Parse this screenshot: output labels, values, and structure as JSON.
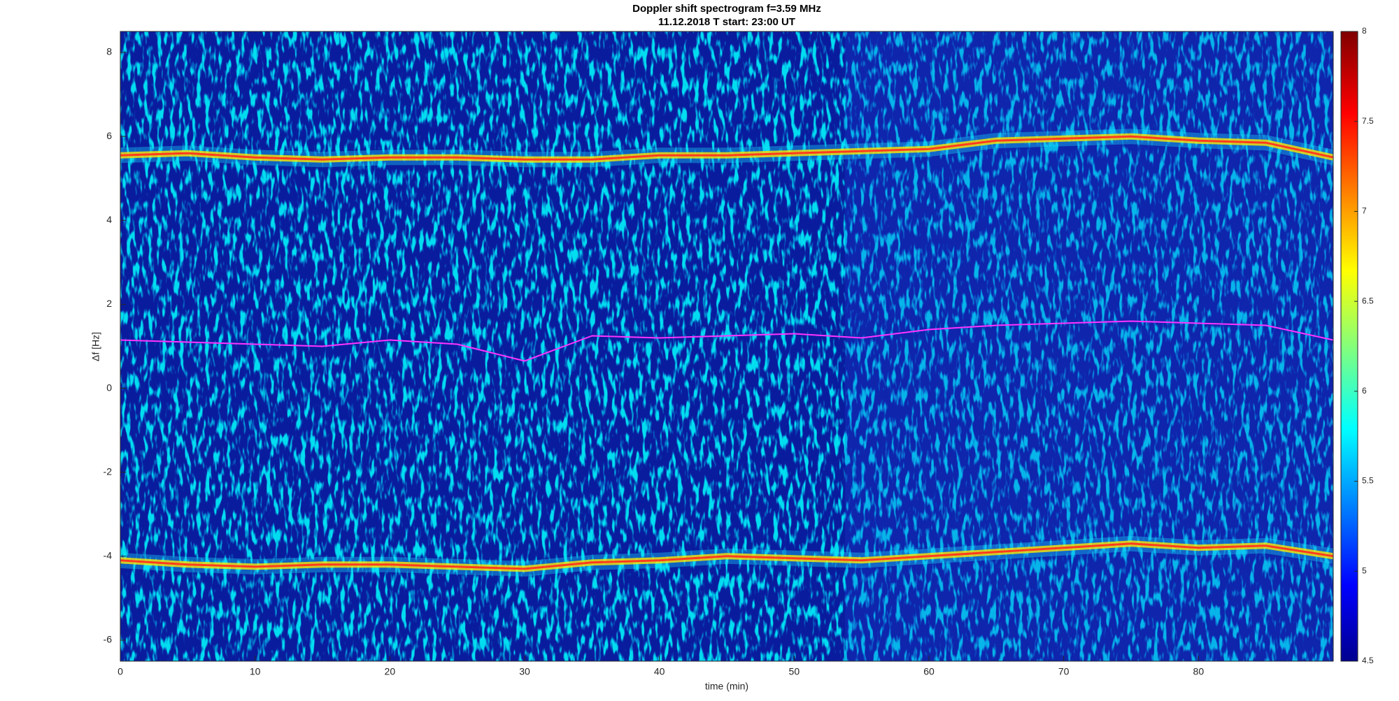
{
  "chart_data": {
    "type": "spectrogram",
    "title": "Doppler shift spectrogram f=3.59 MHz",
    "subtitle": "11.12.2018    T start: 23:00 UT",
    "xlabel": "time (min)",
    "ylabel": "Δf [Hz]",
    "xlim": [
      0,
      90
    ],
    "xticks": [
      0,
      10,
      20,
      30,
      40,
      50,
      60,
      70,
      80
    ],
    "ylim": [
      -6.5,
      8.5
    ],
    "yticks": [
      -6,
      -4,
      -2,
      0,
      2,
      4,
      6,
      8
    ],
    "clim": [
      4.5,
      8
    ],
    "cticks": [
      4.5,
      5,
      5.5,
      6,
      6.5,
      7,
      7.5,
      8
    ],
    "x": [
      0,
      5,
      10,
      15,
      20,
      25,
      30,
      35,
      40,
      45,
      50,
      55,
      60,
      65,
      70,
      75,
      80,
      85,
      90
    ],
    "series": [
      {
        "color": "#ff3b1f",
        "values": [
          5.55,
          5.6,
          5.5,
          5.45,
          5.5,
          5.5,
          5.45,
          5.45,
          5.55,
          5.55,
          5.6,
          5.65,
          5.7,
          5.9,
          5.95,
          6.0,
          5.9,
          5.85,
          5.5
        ]
      },
      {
        "color": "#ff33ff",
        "values": [
          1.15,
          1.1,
          1.05,
          1.0,
          1.15,
          1.05,
          0.65,
          1.25,
          1.2,
          1.25,
          1.3,
          1.2,
          1.4,
          1.5,
          1.55,
          1.6,
          1.55,
          1.5,
          1.15
        ]
      },
      {
        "color": "#ff3b1f",
        "values": [
          -4.1,
          -4.2,
          -4.25,
          -4.2,
          -4.2,
          -4.25,
          -4.3,
          -4.15,
          -4.1,
          -4.0,
          -4.05,
          -4.1,
          -4.0,
          -3.9,
          -3.8,
          -3.7,
          -3.8,
          -3.75,
          -4.0
        ]
      }
    ]
  }
}
